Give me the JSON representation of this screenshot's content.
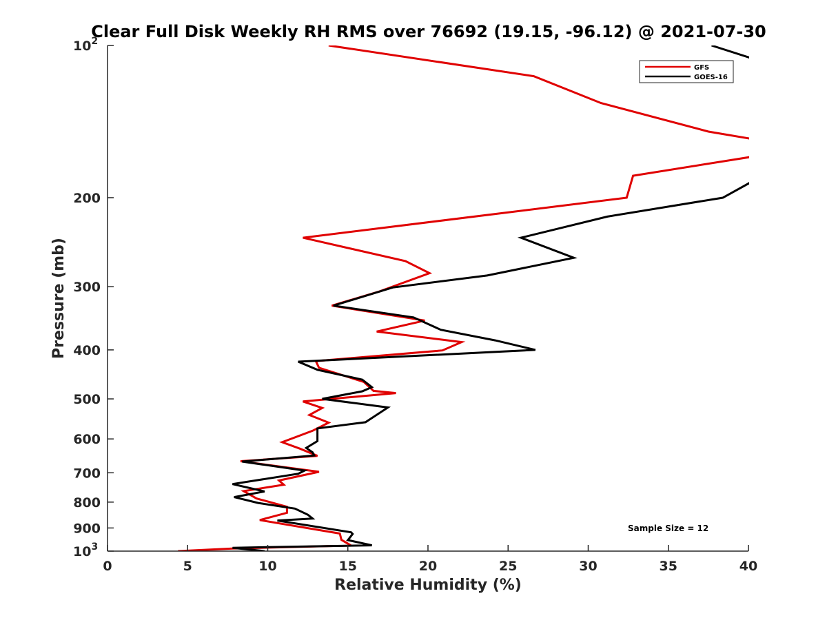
{
  "chart_data": {
    "type": "line",
    "title": "Clear Full Disk Weekly RH RMS over 76692 (19.15, -96.12) @ 2021-07-30",
    "xlabel": "Relative Humidity (%)",
    "ylabel": "Pressure (mb)",
    "xlim": [
      0,
      40
    ],
    "ylim": [
      100,
      1000
    ],
    "yscale": "log",
    "yreversed": true,
    "grid": false,
    "legend_position": "top-right",
    "x_ticks": [
      0,
      5,
      10,
      15,
      20,
      25,
      30,
      35,
      40
    ],
    "x_tick_labels": [
      "0",
      "5",
      "10",
      "15",
      "20",
      "25",
      "30",
      "35",
      "40"
    ],
    "y_ticks": [
      {
        "value": 100,
        "label": "10",
        "exp": "2"
      },
      {
        "value": 200,
        "label": "200",
        "exp": ""
      },
      {
        "value": 300,
        "label": "300",
        "exp": ""
      },
      {
        "value": 400,
        "label": "400",
        "exp": ""
      },
      {
        "value": 500,
        "label": "500",
        "exp": ""
      },
      {
        "value": 600,
        "label": "600",
        "exp": ""
      },
      {
        "value": 700,
        "label": "700",
        "exp": ""
      },
      {
        "value": 800,
        "label": "800",
        "exp": ""
      },
      {
        "value": 900,
        "label": "900",
        "exp": ""
      },
      {
        "value": 1000,
        "label": "10",
        "exp": "3"
      }
    ],
    "annotation": "Sample Size = 12",
    "series": [
      {
        "name": "GFS",
        "color": "#e00000",
        "points": [
          [
            13.8,
            100
          ],
          [
            26.6,
            115
          ],
          [
            30.8,
            130
          ],
          [
            37.5,
            148
          ],
          [
            40.2,
            153
          ],
          [
            40.2,
            166
          ],
          [
            32.8,
            181
          ],
          [
            32.4,
            200
          ],
          [
            12.2,
            240
          ],
          [
            18.6,
            267
          ],
          [
            20.1,
            282
          ],
          [
            16.9,
            307
          ],
          [
            14.0,
            327
          ],
          [
            19.8,
            350
          ],
          [
            16.8,
            368
          ],
          [
            22.1,
            386
          ],
          [
            20.9,
            401
          ],
          [
            13.0,
            421
          ],
          [
            13.2,
            434
          ],
          [
            16.0,
            463
          ],
          [
            16.6,
            482
          ],
          [
            18.0,
            487
          ],
          [
            12.2,
            506
          ],
          [
            13.4,
            521
          ],
          [
            12.6,
            538
          ],
          [
            13.8,
            557
          ],
          [
            12.8,
            578
          ],
          [
            10.9,
            609
          ],
          [
            12.0,
            627
          ],
          [
            13.1,
            648
          ],
          [
            8.3,
            664
          ],
          [
            13.2,
            697
          ],
          [
            10.7,
            725
          ],
          [
            11.0,
            739
          ],
          [
            8.5,
            761
          ],
          [
            9.3,
            787
          ],
          [
            11.2,
            817
          ],
          [
            11.2,
            840
          ],
          [
            9.5,
            868
          ],
          [
            14.5,
            923
          ],
          [
            14.6,
            950
          ],
          [
            15.2,
            975
          ],
          [
            7.8,
            988
          ],
          [
            4.4,
            1000
          ]
        ]
      },
      {
        "name": "GOES-16",
        "color": "#000000",
        "points": [
          [
            37.7,
            100
          ],
          [
            40.2,
            106
          ],
          [
            40.2,
            186
          ],
          [
            38.4,
            200
          ],
          [
            31.2,
            218
          ],
          [
            25.8,
            240
          ],
          [
            29.1,
            263
          ],
          [
            23.7,
            285
          ],
          [
            17.8,
            301
          ],
          [
            14.1,
            327
          ],
          [
            19.1,
            345
          ],
          [
            20.8,
            365
          ],
          [
            24.2,
            383
          ],
          [
            26.7,
            400
          ],
          [
            11.9,
            422
          ],
          [
            13.1,
            438
          ],
          [
            15.9,
            458
          ],
          [
            16.5,
            474
          ],
          [
            15.9,
            483
          ],
          [
            13.4,
            500
          ],
          [
            17.5,
            520
          ],
          [
            16.1,
            556
          ],
          [
            13.1,
            572
          ],
          [
            13.1,
            606
          ],
          [
            12.4,
            625
          ],
          [
            12.8,
            638
          ],
          [
            12.9,
            647
          ],
          [
            8.4,
            665
          ],
          [
            12.3,
            693
          ],
          [
            11.9,
            703
          ],
          [
            7.8,
            737
          ],
          [
            9.8,
            762
          ],
          [
            7.9,
            782
          ],
          [
            9.4,
            803
          ],
          [
            11.7,
            824
          ],
          [
            12.5,
            847
          ],
          [
            12.8,
            862
          ],
          [
            10.6,
            870
          ],
          [
            15.2,
            918
          ],
          [
            15.3,
            925
          ],
          [
            15.0,
            951
          ],
          [
            16.5,
            974
          ],
          [
            7.8,
            985
          ],
          [
            9.8,
            1000
          ]
        ]
      }
    ]
  }
}
